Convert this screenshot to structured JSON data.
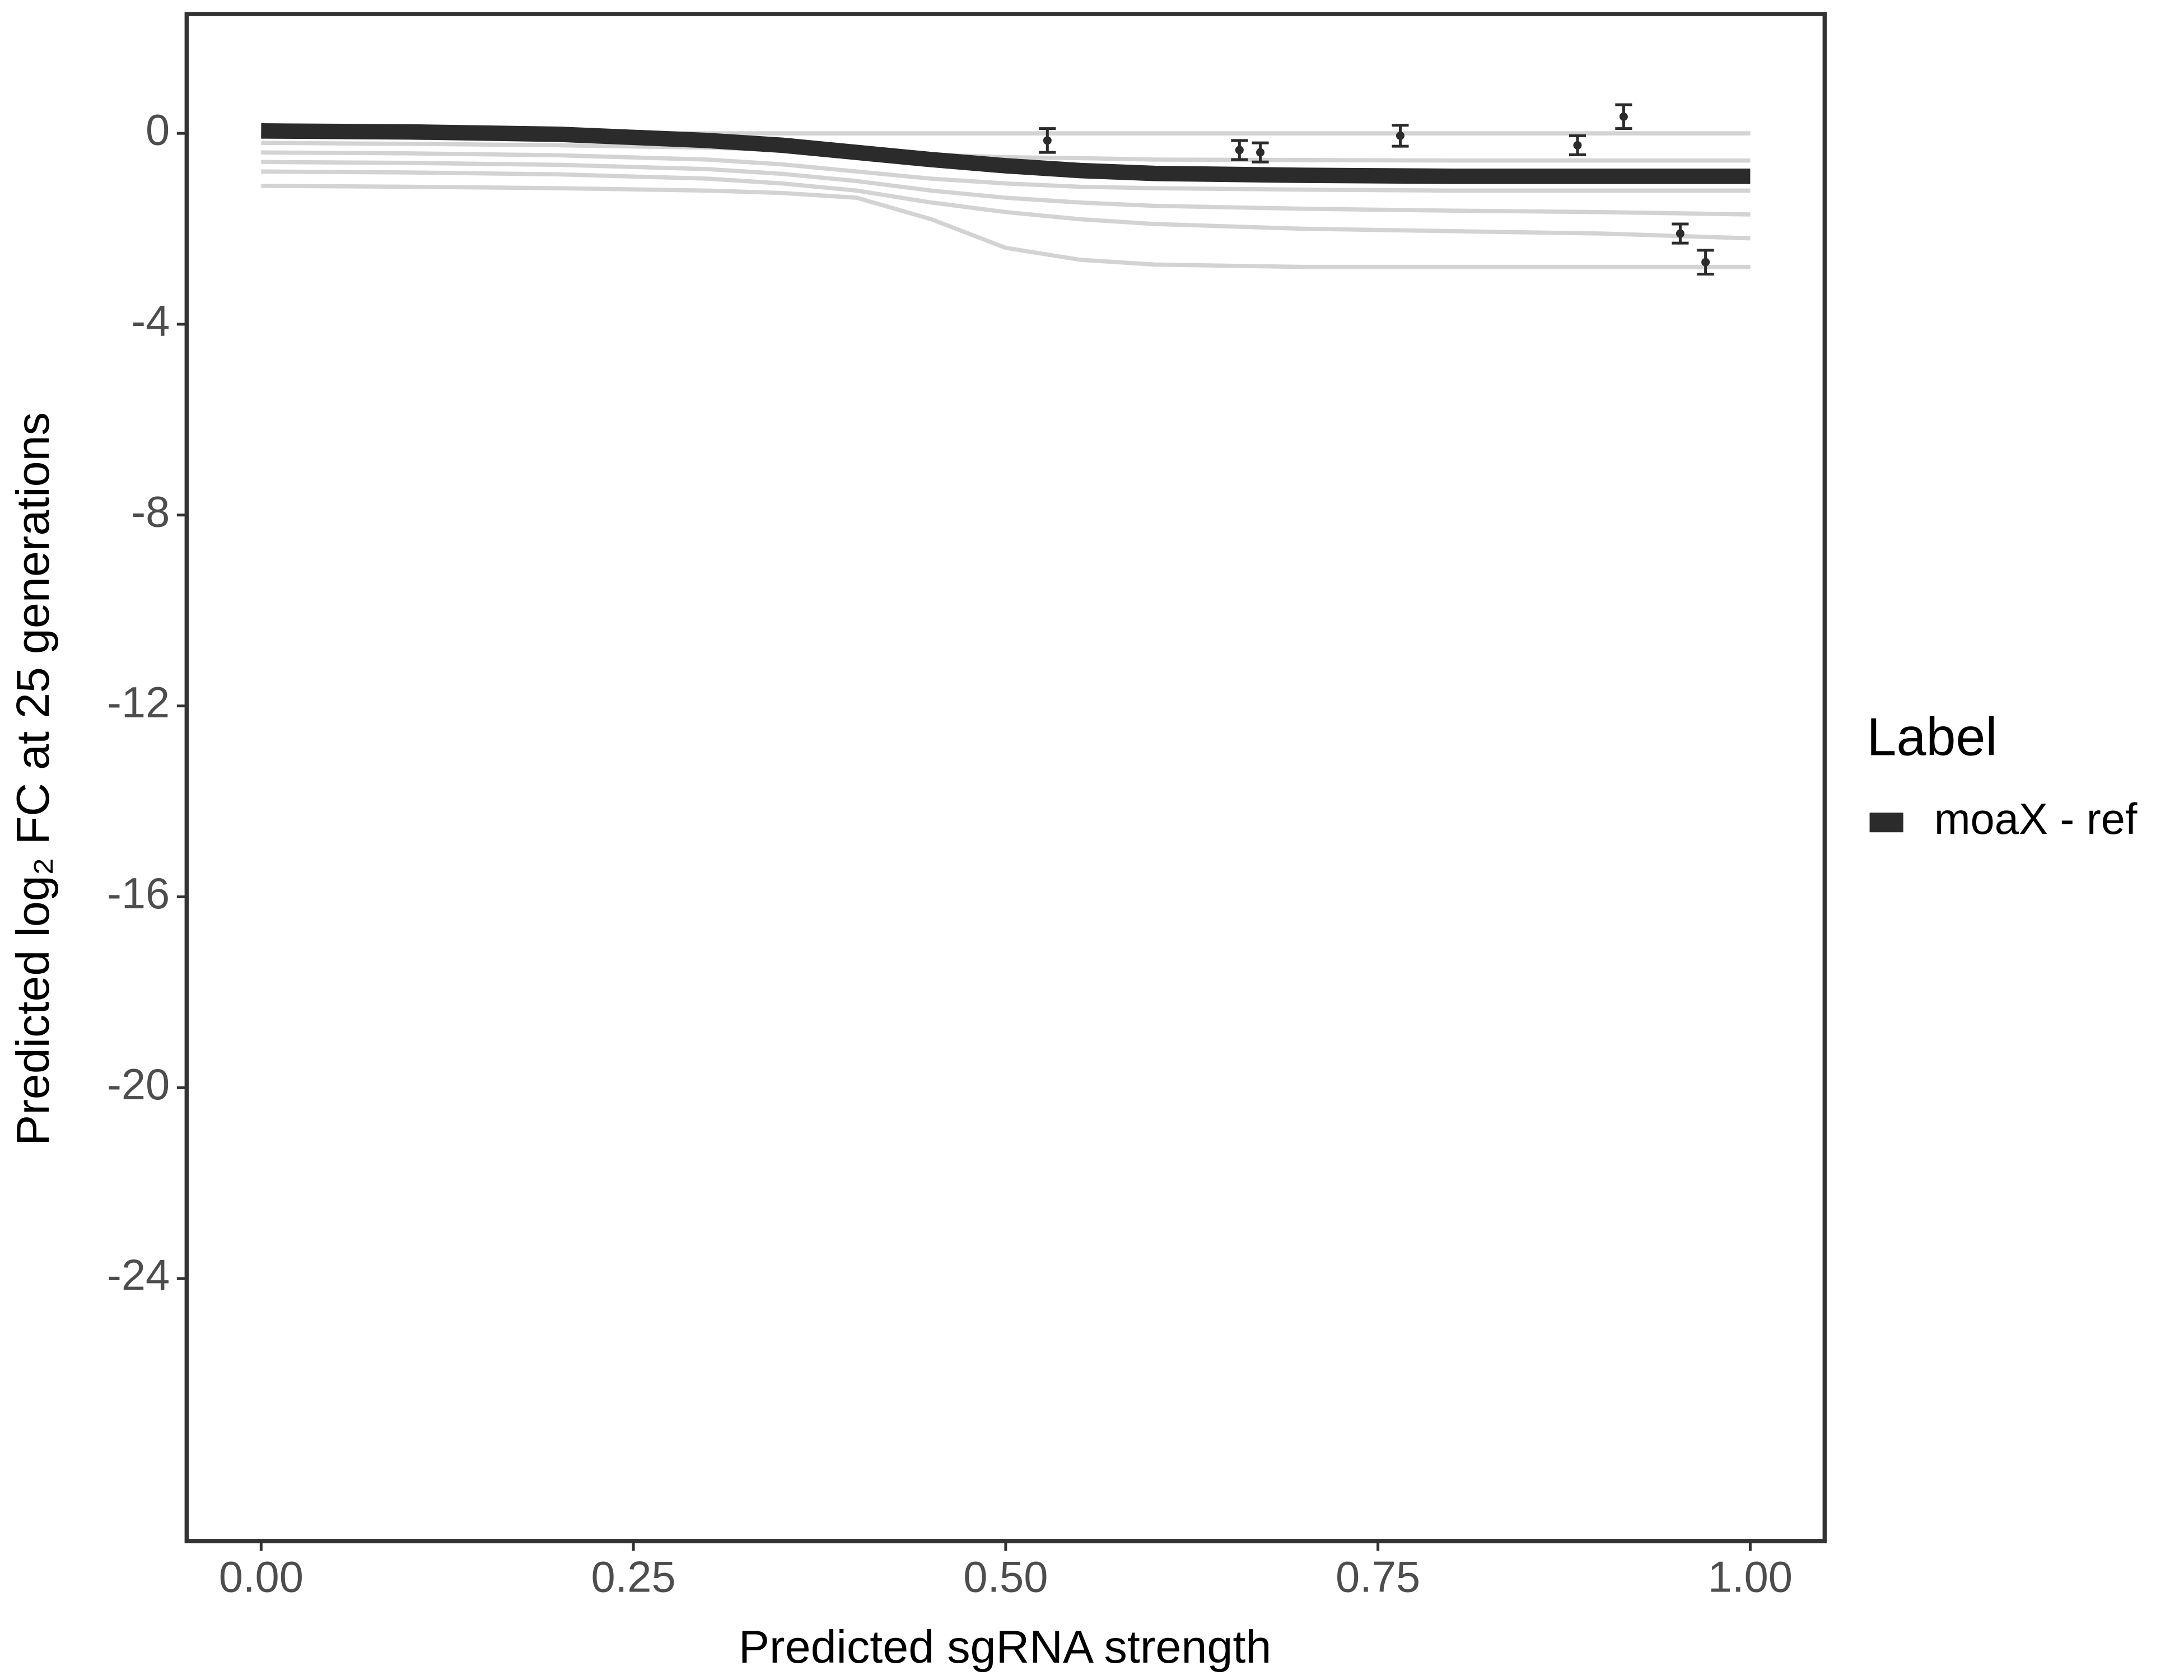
{
  "chart_data": {
    "type": "line",
    "xlabel": "Predicted sgRNA strength",
    "ylabel": "Predicted  log₂ FC at 25 generations",
    "legend_title": "Label",
    "legend_position": "right",
    "x": [
      0,
      0.1,
      0.2,
      0.3,
      0.35,
      0.4,
      0.45,
      0.5,
      0.55,
      0.6,
      0.7,
      0.8,
      0.9,
      1.0
    ],
    "series": [
      {
        "name": "moaX - ref",
        "color": "#2b2b2b",
        "values": [
          0.05,
          0.03,
          -0.02,
          -0.15,
          -0.25,
          -0.4,
          -0.55,
          -0.68,
          -0.78,
          -0.84,
          -0.88,
          -0.9,
          -0.9,
          -0.9
        ]
      }
    ],
    "draws_color": "#a8a8a8",
    "draws": [
      {
        "values": [
          0,
          0,
          0,
          0,
          0,
          0,
          0,
          0,
          0,
          0,
          0,
          0,
          0,
          0
        ]
      },
      {
        "values": [
          -0.2,
          -0.22,
          -0.25,
          -0.3,
          -0.35,
          -0.4,
          -0.45,
          -0.5,
          -0.52,
          -0.55,
          -0.56,
          -0.57,
          -0.57,
          -0.57
        ]
      },
      {
        "values": [
          -0.4,
          -0.42,
          -0.46,
          -0.55,
          -0.65,
          -0.8,
          -0.95,
          -1.05,
          -1.12,
          -1.15,
          -1.18,
          -1.2,
          -1.2,
          -1.2
        ]
      },
      {
        "values": [
          -0.6,
          -0.62,
          -0.66,
          -0.75,
          -0.85,
          -1.0,
          -1.2,
          -1.35,
          -1.45,
          -1.52,
          -1.58,
          -1.62,
          -1.65,
          -1.7
        ]
      },
      {
        "values": [
          -0.8,
          -0.82,
          -0.86,
          -0.95,
          -1.05,
          -1.2,
          -1.45,
          -1.65,
          -1.8,
          -1.9,
          -2.0,
          -2.05,
          -2.1,
          -2.2
        ]
      },
      {
        "values": [
          -1.1,
          -1.12,
          -1.15,
          -1.2,
          -1.25,
          -1.35,
          -1.8,
          -2.4,
          -2.65,
          -2.75,
          -2.8,
          -2.8,
          -2.8,
          -2.8
        ]
      }
    ],
    "points": {
      "color": "#2b2b2b",
      "x": [
        0.528,
        0.657,
        0.671,
        0.765,
        0.884,
        0.915,
        0.953,
        0.97
      ],
      "y": [
        -0.15,
        -0.35,
        -0.4,
        -0.05,
        -0.25,
        0.35,
        -2.1,
        -2.7
      ],
      "err": [
        0.25,
        0.2,
        0.2,
        0.22,
        0.2,
        0.25,
        0.2,
        0.25
      ]
    },
    "xlim": [
      -0.05,
      1.05
    ],
    "xticks": [
      {
        "value": 0,
        "label": "0.00"
      },
      0.25,
      {
        "value": 0.5,
        "label": "0.50"
      },
      0.75,
      {
        "value": 1,
        "label": "1.00"
      }
    ],
    "ylim": [
      -29.5,
      2.5
    ],
    "yticks": [
      0,
      -4,
      -8,
      -12,
      -16,
      -20,
      -24
    ],
    "grid": false
  }
}
